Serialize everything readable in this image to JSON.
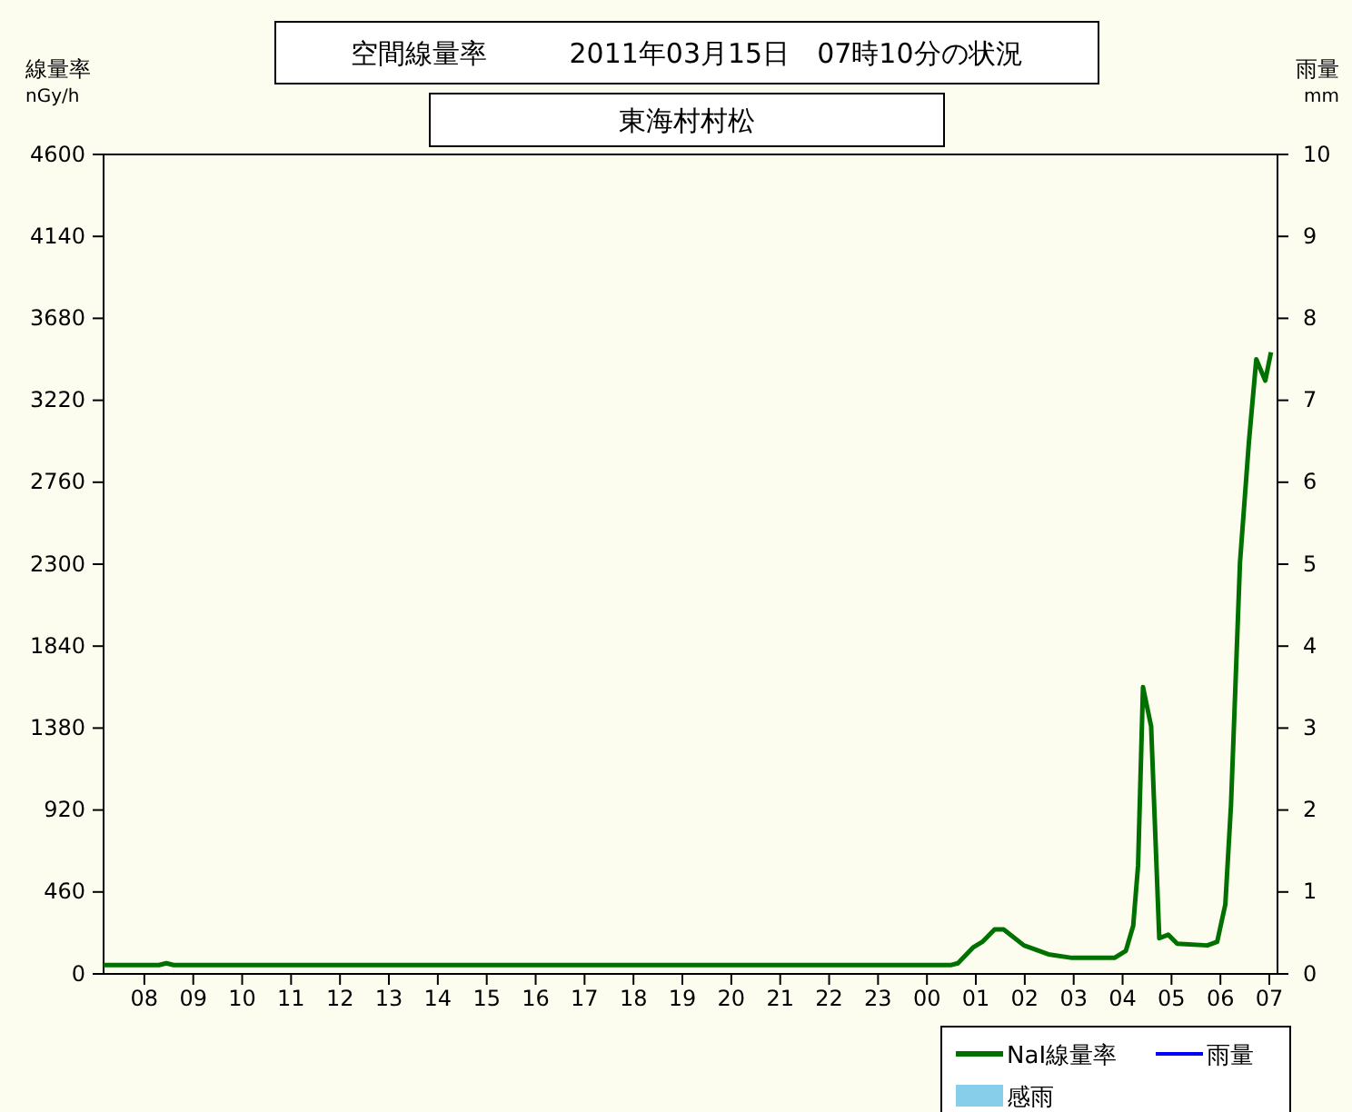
{
  "chart_data": {
    "type": "line",
    "title": "空間線量率　　　2011年03月15日　07時10分の状況",
    "subtitle": "東海村村松",
    "ylabel": "線量率\nnGy/h",
    "y2label": "雨量\nmm",
    "xlim": [
      "2011-03-14T07:10",
      "2011-03-15T07:10"
    ],
    "xticks": [
      {
        "value": "2011-03-14T08:00",
        "label": "08"
      },
      {
        "value": "2011-03-14T09:00",
        "label": "09"
      },
      {
        "value": "2011-03-14T10:00",
        "label": "10"
      },
      {
        "value": "2011-03-14T11:00",
        "label": "11"
      },
      {
        "value": "2011-03-14T12:00",
        "label": "12"
      },
      {
        "value": "2011-03-14T13:00",
        "label": "13"
      },
      {
        "value": "2011-03-14T14:00",
        "label": "14"
      },
      {
        "value": "2011-03-14T15:00",
        "label": "15"
      },
      {
        "value": "2011-03-14T16:00",
        "label": "16"
      },
      {
        "value": "2011-03-14T17:00",
        "label": "17"
      },
      {
        "value": "2011-03-14T18:00",
        "label": "18"
      },
      {
        "value": "2011-03-14T19:00",
        "label": "19"
      },
      {
        "value": "2011-03-14T20:00",
        "label": "20"
      },
      {
        "value": "2011-03-14T21:00",
        "label": "21"
      },
      {
        "value": "2011-03-14T22:00",
        "label": "22"
      },
      {
        "value": "2011-03-14T23:00",
        "label": "23"
      },
      {
        "value": "2011-03-15T00:00",
        "label": "00"
      },
      {
        "value": "2011-03-15T01:00",
        "label": "01"
      },
      {
        "value": "2011-03-15T02:00",
        "label": "02"
      },
      {
        "value": "2011-03-15T03:00",
        "label": "03"
      },
      {
        "value": "2011-03-15T04:00",
        "label": "04"
      },
      {
        "value": "2011-03-15T05:00",
        "label": "05"
      },
      {
        "value": "2011-03-15T06:00",
        "label": "06"
      },
      {
        "value": "2011-03-15T07:00",
        "label": "07"
      }
    ],
    "ylim": [
      0,
      4600
    ],
    "yticks": [
      0,
      460,
      920,
      1380,
      1840,
      2300,
      2760,
      3220,
      3680,
      4140,
      4600
    ],
    "y2lim": [
      0,
      10
    ],
    "y2ticks": [
      0,
      1,
      2,
      3,
      4,
      5,
      6,
      7,
      8,
      9,
      10
    ],
    "legend": "bottom right",
    "series": [
      {
        "name": "NaI線量率",
        "color": "#007000",
        "x": [
          "2011-03-14T07:10",
          "2011-03-14T08:18",
          "2011-03-14T08:27",
          "2011-03-14T08:36",
          "2011-03-15T00:30",
          "2011-03-15T00:38",
          "2011-03-15T00:57",
          "2011-03-15T01:08",
          "2011-03-15T01:23",
          "2011-03-15T01:34",
          "2011-03-15T01:59",
          "2011-03-15T02:29",
          "2011-03-15T02:58",
          "2011-03-15T03:50",
          "2011-03-15T04:04",
          "2011-03-15T04:13",
          "2011-03-15T04:19",
          "2011-03-15T04:25",
          "2011-03-15T04:35",
          "2011-03-15T04:45",
          "2011-03-15T04:56",
          "2011-03-15T05:07",
          "2011-03-15T05:44",
          "2011-03-15T05:56",
          "2011-03-15T06:06",
          "2011-03-15T06:13",
          "2011-03-15T06:24",
          "2011-03-15T06:35",
          "2011-03-15T06:44",
          "2011-03-15T06:55",
          "2011-03-15T07:02"
        ],
        "values": [
          50,
          50,
          60,
          50,
          50,
          60,
          150,
          180,
          250,
          250,
          160,
          110,
          90,
          90,
          130,
          270,
          610,
          1610,
          1390,
          200,
          220,
          170,
          160,
          180,
          390,
          950,
          2310,
          2990,
          3450,
          3330,
          3490
        ]
      },
      {
        "name": "雨量",
        "color": "#0000ff"
      },
      {
        "name": "感雨",
        "type": "bar",
        "color": "#87ceeb"
      }
    ]
  }
}
